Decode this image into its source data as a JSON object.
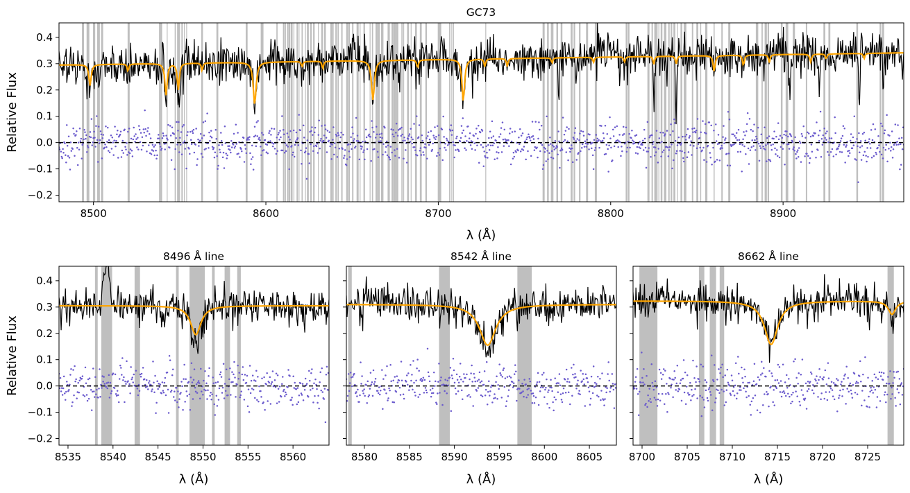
{
  "figure_title": "GC73",
  "colors": {
    "spectrum": "#000000",
    "model": "#ffa500",
    "residuals": "#6a5acd",
    "mask": "#a9a9a9",
    "zero_line": "#000000"
  },
  "chart_data": [
    {
      "id": "full",
      "type": "line",
      "title": "GC73",
      "xlabel": "λ (Å)",
      "ylabel": "Relative Flux",
      "xlim": [
        8480,
        8970
      ],
      "ylim": [
        -0.225,
        0.455
      ],
      "xticks": [
        8500,
        8600,
        8700,
        8800,
        8900
      ],
      "xtick_labels": [
        "8500",
        "8600",
        "8700",
        "8800",
        "8900"
      ],
      "yticks": [
        -0.2,
        -0.1,
        0.0,
        0.1,
        0.2,
        0.3,
        0.4
      ],
      "ytick_labels": [
        "−0.2",
        "−0.1",
        "0.0",
        "0.1",
        "0.2",
        "0.3",
        "0.4"
      ],
      "continuum": {
        "start": 0.295,
        "slope_per_A": 9.43e-05
      },
      "model_lines": [
        [
          8498.0,
          0.08,
          0.8
        ],
        [
          8542.1,
          0.12,
          0.8
        ],
        [
          8549.2,
          0.1,
          0.7
        ],
        [
          8593.5,
          0.16,
          1.0
        ],
        [
          8662.1,
          0.15,
          1.0
        ],
        [
          8714.5,
          0.16,
          0.9
        ],
        [
          8520.0,
          0.03,
          0.5
        ],
        [
          8563.0,
          0.03,
          0.5
        ],
        [
          8621.0,
          0.02,
          0.5
        ],
        [
          8633.0,
          0.03,
          0.5
        ],
        [
          8688.0,
          0.03,
          0.6
        ],
        [
          8727.0,
          0.03,
          0.5
        ],
        [
          8740.0,
          0.03,
          0.5
        ],
        [
          8766.0,
          0.02,
          0.5
        ],
        [
          8790.0,
          0.02,
          0.5
        ],
        [
          8808.0,
          0.02,
          0.5
        ],
        [
          8825.0,
          0.03,
          0.5
        ],
        [
          8838.0,
          0.03,
          0.5
        ],
        [
          8860.0,
          0.06,
          0.7
        ],
        [
          8877.0,
          0.04,
          0.6
        ],
        [
          8892.0,
          0.03,
          0.5
        ],
        [
          8916.0,
          0.03,
          0.6
        ],
        [
          8925.0,
          0.02,
          0.5
        ],
        [
          8947.0,
          0.02,
          0.5
        ]
      ],
      "noise": 0.04,
      "residual_spread": 0.04,
      "sky_lines": [
        [
          8770.0,
          0.15
        ],
        [
          8780.0,
          0.12
        ],
        [
          8825.0,
          0.15
        ],
        [
          8838.0,
          0.22
        ],
        [
          8904.0,
          0.18
        ],
        [
          8921.0,
          0.16
        ],
        [
          8944.0,
          0.2
        ],
        [
          8958.0,
          0.14
        ],
        [
          8550.0,
          0.1
        ],
        [
          8504.0,
          0.08
        ]
      ],
      "mask_regions": [
        [
          8493.3,
          8494.5
        ],
        [
          8496.0,
          8497.6
        ],
        [
          8499.7,
          8501.0
        ],
        [
          8502.1,
          8503.7
        ],
        [
          8504.4,
          8505.6
        ],
        [
          8519.8,
          8521.0
        ],
        [
          8538.0,
          8538.6
        ],
        [
          8538.7,
          8539.8
        ],
        [
          8542.5,
          8543.0
        ],
        [
          8547.1,
          8547.8
        ],
        [
          8548.5,
          8550.2
        ],
        [
          8551.0,
          8551.8
        ],
        [
          8552.5,
          8553.0
        ],
        [
          8553.8,
          8554.2
        ],
        [
          8562.5,
          8563.5
        ],
        [
          8571.3,
          8572.4
        ],
        [
          8588.3,
          8589.4
        ],
        [
          8597.0,
          8598.6
        ],
        [
          8606.1,
          8606.8
        ],
        [
          8609.9,
          8610.5
        ],
        [
          8610.7,
          8611.6
        ],
        [
          8612.3,
          8612.9
        ],
        [
          8613.0,
          8614.1
        ],
        [
          8614.4,
          8615.5
        ],
        [
          8616.0,
          8616.5
        ],
        [
          8617.8,
          8618.6
        ],
        [
          8619.0,
          8619.4
        ],
        [
          8620.7,
          8621.4
        ],
        [
          8622.7,
          8623.1
        ],
        [
          8623.8,
          8624.9
        ],
        [
          8625.7,
          8626.6
        ],
        [
          8627.4,
          8628.3
        ],
        [
          8630.2,
          8630.7
        ],
        [
          8632.1,
          8633.2
        ],
        [
          8633.8,
          8634.8
        ],
        [
          8637.4,
          8638.4
        ],
        [
          8638.5,
          8639.3
        ],
        [
          8640.3,
          8641.2
        ],
        [
          8641.6,
          8642.3
        ],
        [
          8643.7,
          8644.5
        ],
        [
          8646.6,
          8647.6
        ],
        [
          8647.8,
          8648.7
        ],
        [
          8650.0,
          8650.8
        ],
        [
          8652.6,
          8653.8
        ],
        [
          8654.4,
          8654.9
        ],
        [
          8656.6,
          8657.5
        ],
        [
          8660.2,
          8660.6
        ],
        [
          8661.5,
          8662.2
        ],
        [
          8663.6,
          8664.8
        ],
        [
          8664.9,
          8666.1
        ],
        [
          8666.8,
          8668.2
        ],
        [
          8670.6,
          8671.9
        ],
        [
          8672.9,
          8674.0
        ],
        [
          8674.1,
          8675.4
        ],
        [
          8675.5,
          8676.8
        ],
        [
          8678.6,
          8679.3
        ],
        [
          8679.7,
          8680.1
        ],
        [
          8681.9,
          8683.0
        ],
        [
          8684.0,
          8684.5
        ],
        [
          8686.5,
          8687.6
        ],
        [
          8689.3,
          8690.4
        ],
        [
          8692.5,
          8693.4
        ],
        [
          8699.7,
          8701.7
        ],
        [
          8706.3,
          8707.0
        ],
        [
          8707.6,
          8708.1
        ],
        [
          8708.6,
          8709.0
        ],
        [
          8727.3,
          8727.8
        ],
        [
          8760.5,
          8761.7
        ],
        [
          8763.1,
          8764.1
        ],
        [
          8765.3,
          8766.8
        ],
        [
          8768.5,
          8769.5
        ],
        [
          8771.0,
          8772.0
        ],
        [
          8776.8,
          8777.9
        ],
        [
          8778.5,
          8779.4
        ],
        [
          8781.6,
          8782.5
        ],
        [
          8785.7,
          8786.9
        ],
        [
          8790.8,
          8792.0
        ],
        [
          8808.7,
          8809.7
        ],
        [
          8810.0,
          8810.9
        ],
        [
          8821.3,
          8822.5
        ],
        [
          8823.7,
          8824.5
        ],
        [
          8825.3,
          8826.4
        ],
        [
          8826.4,
          8827.2
        ],
        [
          8827.7,
          8828.1
        ],
        [
          8829.0,
          8830.0
        ],
        [
          8830.9,
          8832.3
        ],
        [
          8833.4,
          8834.2
        ],
        [
          8834.8,
          8835.7
        ],
        [
          8836.4,
          8837.5
        ],
        [
          8838.6,
          8839.0
        ],
        [
          8840.5,
          8841.5
        ],
        [
          8842.4,
          8843.9
        ],
        [
          8847.1,
          8847.9
        ],
        [
          8849.7,
          8850.8
        ],
        [
          8851.9,
          8852.5
        ],
        [
          8854.8,
          8856.1
        ],
        [
          8859.7,
          8860.3
        ],
        [
          8864.2,
          8865.0
        ],
        [
          8868.2,
          8869.4
        ],
        [
          8884.2,
          8885.6
        ],
        [
          8887.5,
          8888.2
        ],
        [
          8889.3,
          8890.6
        ],
        [
          8891.0,
          8891.9
        ],
        [
          8898.7,
          8899.7
        ],
        [
          8901.5,
          8903.0
        ],
        [
          8905.6,
          8906.9
        ],
        [
          8913.2,
          8914.0
        ],
        [
          8923.4,
          8924.5
        ],
        [
          8926.3,
          8927.4
        ],
        [
          8942.5,
          8943.5
        ],
        [
          8956.0,
          8957.0
        ],
        [
          8957.5,
          8958.6
        ]
      ],
      "n_points": 1300,
      "seed": 73
    },
    {
      "id": "ca8498",
      "type": "line",
      "title": "8496 Å line",
      "xlabel": "λ (Å)",
      "ylabel": "Relative Flux",
      "xlim": [
        8534,
        8564
      ],
      "ylim": [
        -0.225,
        0.455
      ],
      "xticks": [
        8535,
        8540,
        8545,
        8550,
        8555,
        8560
      ],
      "xtick_labels": [
        "8535",
        "8540",
        "8545",
        "8550",
        "8555",
        "8560"
      ],
      "yticks": [
        -0.2,
        -0.1,
        0.0,
        0.1,
        0.2,
        0.3,
        0.4
      ],
      "ytick_labels": [
        "−0.2",
        "−0.1",
        "0.0",
        "0.1",
        "0.2",
        "0.3",
        "0.4"
      ],
      "show_ylabel": true,
      "show_yticklabels": true,
      "continuum": {
        "start": 0.305,
        "slope_per_A": 0.0
      },
      "model_lines": [
        [
          8549.2,
          0.11,
          0.7
        ]
      ],
      "noise": 0.035,
      "residual_spread": 0.04,
      "sky_lines": [
        [
          8539.3,
          -0.15
        ],
        [
          8549.3,
          0.05
        ]
      ],
      "mask_regions": [
        [
          8538.0,
          8538.3
        ],
        [
          8538.7,
          8539.9
        ],
        [
          8542.4,
          8543.0
        ],
        [
          8547.0,
          8547.3
        ],
        [
          8548.5,
          8550.2
        ],
        [
          8551.0,
          8551.3
        ],
        [
          8552.4,
          8553.0
        ],
        [
          8553.8,
          8554.2
        ]
      ],
      "n_points": 380,
      "seed": 8496
    },
    {
      "id": "ca8542",
      "type": "line",
      "title": "8542 Å line",
      "xlabel": "λ (Å)",
      "ylabel": "",
      "xlim": [
        8578,
        8608
      ],
      "ylim": [
        -0.225,
        0.455
      ],
      "xticks": [
        8580,
        8585,
        8590,
        8595,
        8600,
        8605
      ],
      "xtick_labels": [
        "8580",
        "8585",
        "8590",
        "8595",
        "8600",
        "8605"
      ],
      "yticks": [
        -0.2,
        -0.1,
        0.0,
        0.1,
        0.2,
        0.3,
        0.4
      ],
      "ytick_labels": [
        "",
        "",
        "",
        "",
        "",
        "",
        ""
      ],
      "show_ylabel": false,
      "show_yticklabels": false,
      "continuum": {
        "start": 0.31,
        "slope_per_A": 0.0
      },
      "model_lines": [
        [
          8593.7,
          0.155,
          1.1
        ]
      ],
      "noise": 0.035,
      "residual_spread": 0.04,
      "sky_lines": [],
      "mask_regions": [
        [
          8578.2,
          8578.6
        ],
        [
          8588.3,
          8589.5
        ],
        [
          8597.0,
          8598.6
        ]
      ],
      "n_points": 380,
      "seed": 8542
    },
    {
      "id": "ca8662",
      "type": "line",
      "title": "8662 Å line",
      "xlabel": "λ (Å)",
      "ylabel": "",
      "xlim": [
        8699,
        8729
      ],
      "ylim": [
        -0.225,
        0.455
      ],
      "xticks": [
        8700,
        8705,
        8710,
        8715,
        8720,
        8725
      ],
      "xtick_labels": [
        "8700",
        "8705",
        "8710",
        "8715",
        "8720",
        "8725"
      ],
      "yticks": [
        -0.2,
        -0.1,
        0.0,
        0.1,
        0.2,
        0.3,
        0.4
      ],
      "ytick_labels": [
        "",
        "",
        "",
        "",
        "",
        "",
        ""
      ],
      "show_ylabel": false,
      "show_yticklabels": false,
      "continuum": {
        "start": 0.323,
        "slope_per_A": 0.0
      },
      "model_lines": [
        [
          8714.3,
          0.165,
          0.9
        ],
        [
          8727.7,
          0.05,
          0.5
        ]
      ],
      "noise": 0.035,
      "residual_spread": 0.045,
      "sky_lines": [],
      "mask_regions": [
        [
          8699.7,
          8701.7
        ],
        [
          8706.3,
          8706.9
        ],
        [
          8707.5,
          8708.2
        ],
        [
          8708.6,
          8709.1
        ],
        [
          8727.2,
          8727.9
        ]
      ],
      "n_points": 380,
      "seed": 8662
    }
  ]
}
